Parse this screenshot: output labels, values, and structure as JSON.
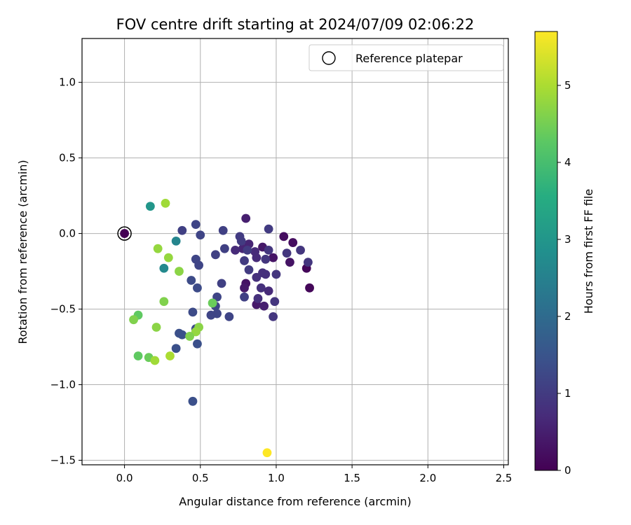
{
  "chart_data": {
    "type": "scatter",
    "title": "FOV centre drift starting at 2024/07/09 02:06:22",
    "xlabel": "Angular distance from reference (arcmin)",
    "ylabel": "Rotation from reference (arcmin)",
    "xlim": [
      -0.28,
      2.53
    ],
    "ylim": [
      -1.53,
      1.29
    ],
    "x_ticks": [
      0.0,
      0.5,
      1.0,
      1.5,
      2.0,
      2.5
    ],
    "x_tick_labels": [
      "0.0",
      "0.5",
      "1.0",
      "1.5",
      "2.0",
      "2.5"
    ],
    "y_ticks": [
      -1.5,
      -1.0,
      -0.5,
      0.0,
      0.5,
      1.0
    ],
    "y_tick_labels": [
      "−1.5",
      "−1.0",
      "−0.5",
      "0.0",
      "0.5",
      "1.0"
    ],
    "grid": true,
    "legend": {
      "position": "top-right",
      "entries": [
        "Reference platepar"
      ]
    },
    "reference_point": {
      "x": 0.0,
      "y": 0.0,
      "label": "Reference platepar"
    },
    "colorbar": {
      "label": "Hours from first FF file",
      "colormap": "viridis",
      "range": [
        0,
        5.7
      ],
      "ticks": [
        0,
        1,
        2,
        3,
        4,
        5
      ],
      "tick_labels": [
        "0",
        "1",
        "2",
        "3",
        "4",
        "5"
      ]
    },
    "points": [
      {
        "x": 0.0,
        "y": 0.0,
        "h": 0.0
      },
      {
        "x": 1.05,
        "y": -0.02,
        "h": 0.2
      },
      {
        "x": 1.11,
        "y": -0.06,
        "h": 0.2
      },
      {
        "x": 1.2,
        "y": -0.23,
        "h": 0.1
      },
      {
        "x": 1.22,
        "y": -0.36,
        "h": 0.1
      },
      {
        "x": 1.09,
        "y": -0.19,
        "h": 0.3
      },
      {
        "x": 0.98,
        "y": -0.16,
        "h": 0.3
      },
      {
        "x": 0.91,
        "y": -0.09,
        "h": 0.4
      },
      {
        "x": 0.8,
        "y": -0.33,
        "h": 0.3
      },
      {
        "x": 0.79,
        "y": -0.36,
        "h": 0.4
      },
      {
        "x": 0.87,
        "y": -0.47,
        "h": 0.4
      },
      {
        "x": 0.92,
        "y": -0.48,
        "h": 0.5
      },
      {
        "x": 0.8,
        "y": 0.1,
        "h": 0.5
      },
      {
        "x": 0.82,
        "y": -0.07,
        "h": 0.6
      },
      {
        "x": 0.78,
        "y": -0.1,
        "h": 0.6
      },
      {
        "x": 0.73,
        "y": -0.11,
        "h": 0.7
      },
      {
        "x": 0.86,
        "y": -0.12,
        "h": 0.7
      },
      {
        "x": 0.87,
        "y": -0.16,
        "h": 0.7
      },
      {
        "x": 0.91,
        "y": -0.26,
        "h": 0.8
      },
      {
        "x": 0.93,
        "y": -0.27,
        "h": 0.8
      },
      {
        "x": 0.87,
        "y": -0.29,
        "h": 0.8
      },
      {
        "x": 0.9,
        "y": -0.36,
        "h": 0.8
      },
      {
        "x": 0.95,
        "y": -0.38,
        "h": 0.7
      },
      {
        "x": 0.88,
        "y": -0.43,
        "h": 0.8
      },
      {
        "x": 0.95,
        "y": -0.11,
        "h": 0.9
      },
      {
        "x": 0.93,
        "y": -0.17,
        "h": 0.9
      },
      {
        "x": 1.07,
        "y": -0.13,
        "h": 0.9
      },
      {
        "x": 1.16,
        "y": -0.11,
        "h": 0.9
      },
      {
        "x": 1.21,
        "y": -0.19,
        "h": 0.9
      },
      {
        "x": 1.0,
        "y": -0.27,
        "h": 0.9
      },
      {
        "x": 0.99,
        "y": -0.45,
        "h": 0.9
      },
      {
        "x": 0.98,
        "y": -0.55,
        "h": 0.9
      },
      {
        "x": 0.95,
        "y": 0.03,
        "h": 1.0
      },
      {
        "x": 0.76,
        "y": -0.02,
        "h": 1.0
      },
      {
        "x": 0.77,
        "y": -0.05,
        "h": 1.0
      },
      {
        "x": 0.81,
        "y": -0.11,
        "h": 1.0
      },
      {
        "x": 0.79,
        "y": -0.18,
        "h": 1.0
      },
      {
        "x": 0.82,
        "y": -0.24,
        "h": 1.0
      },
      {
        "x": 0.79,
        "y": -0.42,
        "h": 1.1
      },
      {
        "x": 0.65,
        "y": 0.02,
        "h": 1.1
      },
      {
        "x": 0.66,
        "y": -0.1,
        "h": 1.1
      },
      {
        "x": 0.6,
        "y": -0.14,
        "h": 1.1
      },
      {
        "x": 0.64,
        "y": -0.33,
        "h": 1.1
      },
      {
        "x": 0.61,
        "y": -0.42,
        "h": 1.2
      },
      {
        "x": 0.6,
        "y": -0.48,
        "h": 1.2
      },
      {
        "x": 0.61,
        "y": -0.53,
        "h": 1.2
      },
      {
        "x": 0.57,
        "y": -0.54,
        "h": 1.2
      },
      {
        "x": 0.69,
        "y": -0.55,
        "h": 1.2
      },
      {
        "x": 0.47,
        "y": 0.06,
        "h": 1.2
      },
      {
        "x": 0.5,
        "y": -0.01,
        "h": 1.2
      },
      {
        "x": 0.38,
        "y": 0.02,
        "h": 1.1
      },
      {
        "x": 0.47,
        "y": -0.17,
        "h": 1.2
      },
      {
        "x": 0.49,
        "y": -0.21,
        "h": 1.2
      },
      {
        "x": 0.44,
        "y": -0.31,
        "h": 1.3
      },
      {
        "x": 0.48,
        "y": -0.36,
        "h": 1.3
      },
      {
        "x": 0.45,
        "y": -0.52,
        "h": 1.3
      },
      {
        "x": 0.47,
        "y": -0.63,
        "h": 1.3
      },
      {
        "x": 0.36,
        "y": -0.66,
        "h": 1.4
      },
      {
        "x": 0.38,
        "y": -0.67,
        "h": 1.4
      },
      {
        "x": 0.48,
        "y": -0.73,
        "h": 1.4
      },
      {
        "x": 0.34,
        "y": -0.76,
        "h": 1.4
      },
      {
        "x": 0.45,
        "y": -1.11,
        "h": 1.4
      },
      {
        "x": 0.34,
        "y": -0.05,
        "h": 2.6
      },
      {
        "x": 0.26,
        "y": -0.23,
        "h": 2.7
      },
      {
        "x": 0.17,
        "y": 0.18,
        "h": 3.0
      },
      {
        "x": 0.27,
        "y": 0.2,
        "h": 4.9
      },
      {
        "x": 0.22,
        "y": -0.1,
        "h": 4.8
      },
      {
        "x": 0.29,
        "y": -0.16,
        "h": 4.8
      },
      {
        "x": 0.36,
        "y": -0.25,
        "h": 4.7
      },
      {
        "x": 0.26,
        "y": -0.45,
        "h": 4.6
      },
      {
        "x": 0.58,
        "y": -0.46,
        "h": 4.4
      },
      {
        "x": 0.09,
        "y": -0.54,
        "h": 4.3
      },
      {
        "x": 0.06,
        "y": -0.57,
        "h": 4.6
      },
      {
        "x": 0.21,
        "y": -0.62,
        "h": 4.7
      },
      {
        "x": 0.49,
        "y": -0.62,
        "h": 4.7
      },
      {
        "x": 0.47,
        "y": -0.65,
        "h": 4.8
      },
      {
        "x": 0.43,
        "y": -0.68,
        "h": 4.6
      },
      {
        "x": 0.09,
        "y": -0.81,
        "h": 4.3
      },
      {
        "x": 0.16,
        "y": -0.82,
        "h": 4.4
      },
      {
        "x": 0.2,
        "y": -0.84,
        "h": 4.9
      },
      {
        "x": 0.3,
        "y": -0.81,
        "h": 5.0
      },
      {
        "x": 0.94,
        "y": -1.45,
        "h": 5.7
      }
    ]
  }
}
